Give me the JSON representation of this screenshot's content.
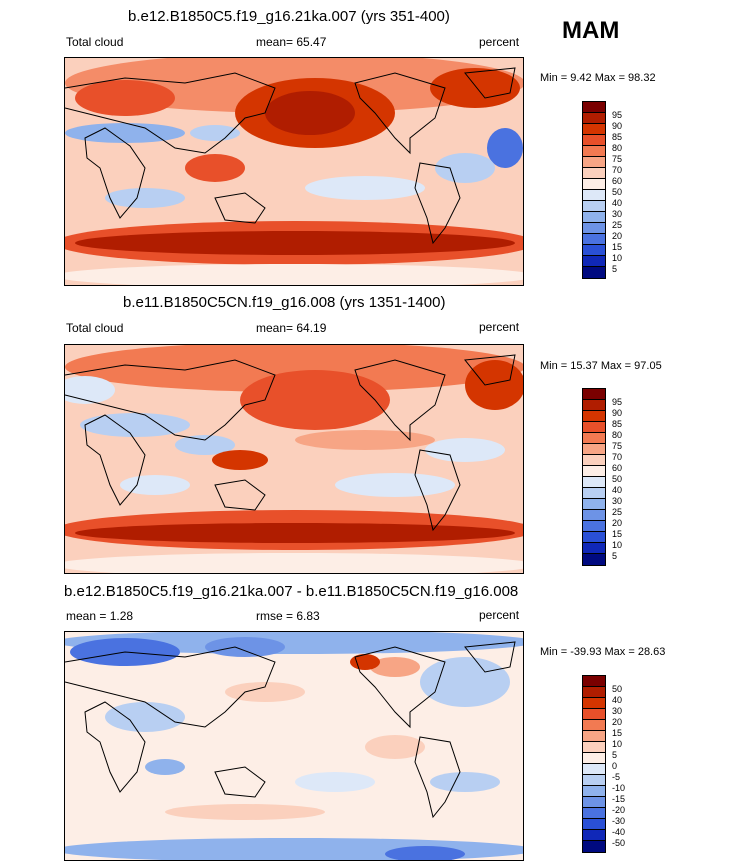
{
  "season": "MAM",
  "panels": [
    {
      "title": "b.e12.B1850C5.f19_g16.21ka.007 (yrs 351-400)",
      "left_label": "Total cloud",
      "mid_label": "mean=  65.47",
      "right_label": "percent",
      "minmax": "Min =   9.42 Max =  98.32",
      "colorbar": {
        "colors": [
          "#7a0000",
          "#b01d00",
          "#d43500",
          "#e8502a",
          "#f27a52",
          "#f7a585",
          "#fbd0bd",
          "#fdeee6",
          "#dde8f8",
          "#b8cff2",
          "#8fb2ec",
          "#6d93e6",
          "#4a72e0",
          "#2a50d6",
          "#1028b8",
          "#000a80"
        ],
        "labels": [
          "95",
          "90",
          "85",
          "80",
          "75",
          "70",
          "60",
          "50",
          "40",
          "30",
          "25",
          "20",
          "15",
          "10",
          "5"
        ]
      }
    },
    {
      "title": "b.e11.B1850C5CN.f19_g16.008 (yrs 1351-1400)",
      "left_label": "Total cloud",
      "mid_label": "mean=  64.19",
      "right_label": "percent",
      "minmax": "Min =  15.37 Max =  97.05",
      "colorbar": {
        "colors": [
          "#7a0000",
          "#b01d00",
          "#d43500",
          "#e8502a",
          "#f27a52",
          "#f7a585",
          "#fbd0bd",
          "#fdeee6",
          "#dde8f8",
          "#b8cff2",
          "#8fb2ec",
          "#6d93e6",
          "#4a72e0",
          "#2a50d6",
          "#1028b8",
          "#000a80"
        ],
        "labels": [
          "95",
          "90",
          "85",
          "80",
          "75",
          "70",
          "60",
          "50",
          "40",
          "30",
          "25",
          "20",
          "15",
          "10",
          "5"
        ]
      }
    },
    {
      "title": "b.e12.B1850C5.f19_g16.21ka.007 - b.e11.B1850C5CN.f19_g16.008",
      "left_label": "mean =   1.28",
      "mid_label": "rmse =   6.83",
      "right_label": "percent",
      "minmax": "Min = -39.93 Max =  28.63",
      "colorbar": {
        "colors": [
          "#7a0000",
          "#b01d00",
          "#d43500",
          "#e8502a",
          "#f27a52",
          "#f7a585",
          "#fbd0bd",
          "#fdeee6",
          "#dde8f8",
          "#b8cff2",
          "#8fb2ec",
          "#6d93e6",
          "#4a72e0",
          "#2a50d6",
          "#1028b8",
          "#000a80"
        ],
        "labels": [
          "50",
          "40",
          "30",
          "20",
          "15",
          "10",
          "5",
          "0",
          "-5",
          "-10",
          "-15",
          "-20",
          "-30",
          "-40",
          "-50"
        ]
      }
    }
  ]
}
